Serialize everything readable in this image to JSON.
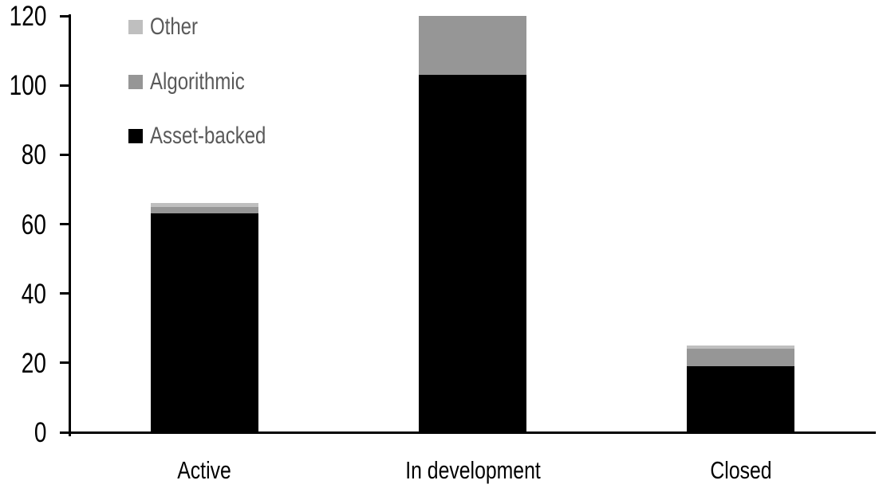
{
  "chart_data": {
    "type": "bar",
    "stacked": true,
    "title": "",
    "xlabel": "",
    "ylabel": "",
    "categories": [
      "Active",
      "In development",
      "Closed"
    ],
    "series": [
      {
        "name": "Asset-backed",
        "color": "#000000",
        "values": [
          63,
          103,
          19
        ]
      },
      {
        "name": "Algorithmic",
        "color": "#969696",
        "values": [
          2,
          17,
          5
        ]
      },
      {
        "name": "Other",
        "color": "#bfbfbf",
        "values": [
          1,
          0,
          1
        ]
      }
    ],
    "totals": [
      66,
      120,
      25
    ],
    "ylim": [
      0,
      120
    ],
    "yticks": [
      0,
      20,
      40,
      60,
      80,
      100,
      120
    ],
    "grid": false,
    "legend_position": "top-left-inside",
    "legend_order_top_to_bottom": [
      "Other",
      "Algorithmic",
      "Asset-backed"
    ],
    "colors": {
      "axis": "#000000",
      "tick_label_text": "#000000",
      "category_label_text": "#000000",
      "legend_text": "#595959",
      "background": "#ffffff"
    }
  }
}
